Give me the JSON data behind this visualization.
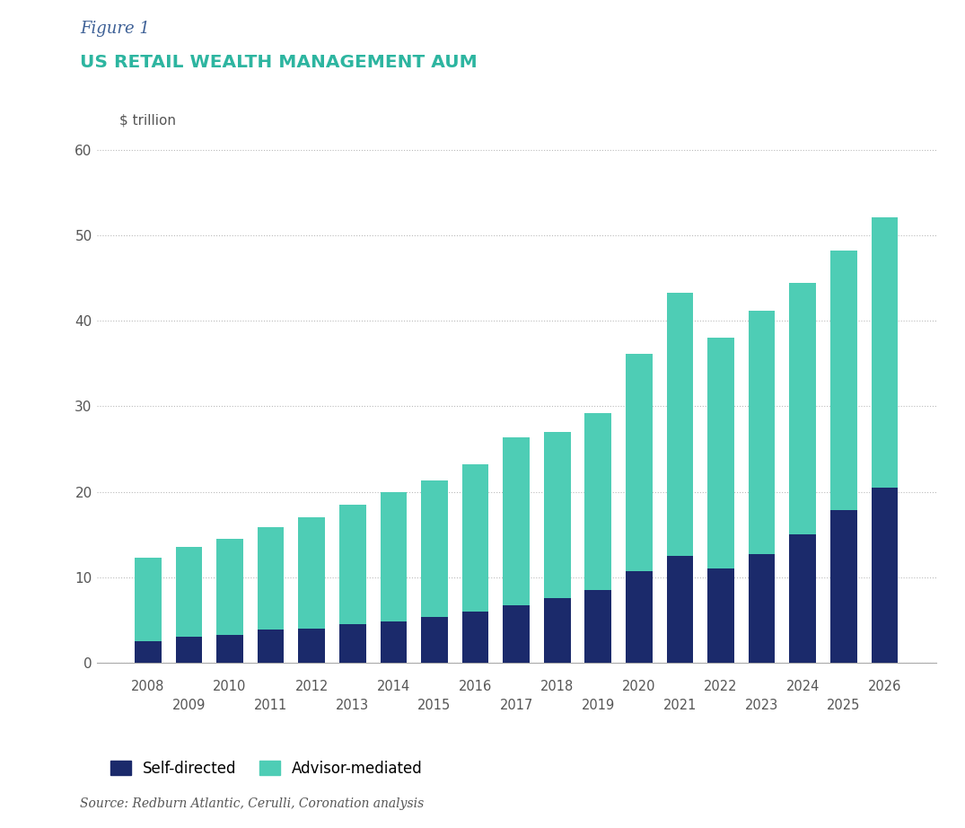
{
  "years": [
    2008,
    2009,
    2010,
    2011,
    2012,
    2013,
    2014,
    2015,
    2016,
    2017,
    2018,
    2019,
    2020,
    2021,
    2022,
    2023,
    2024,
    2025,
    2026
  ],
  "self_directed": [
    2.5,
    3.0,
    3.2,
    3.8,
    4.0,
    4.5,
    4.8,
    5.3,
    6.0,
    6.7,
    7.5,
    8.5,
    10.7,
    12.5,
    11.0,
    12.7,
    15.0,
    17.8,
    20.5
  ],
  "advisor_mediated": [
    9.8,
    10.5,
    11.3,
    12.0,
    13.0,
    14.0,
    15.2,
    16.0,
    17.2,
    19.7,
    19.5,
    20.7,
    25.5,
    30.8,
    27.0,
    28.5,
    29.5,
    30.5,
    31.7
  ],
  "self_directed_color": "#1b2a6b",
  "advisor_mediated_color": "#4ecdb5",
  "background_color": "#ffffff",
  "figure1_text": "Figure 1",
  "title_text": "US RETAIL WEALTH MANAGEMENT AUM",
  "ylabel": "$ trillion",
  "ylim_max": 65,
  "yticks": [
    0,
    10,
    20,
    30,
    40,
    50,
    60
  ],
  "legend_self": "Self-directed",
  "legend_advisor": "Advisor-mediated",
  "source_text": "Source: Redburn Atlantic, Cerulli, Coronation analysis",
  "figure1_color": "#3d6096",
  "title_color": "#2db5a0",
  "tick_color": "#555555",
  "grid_color": "#bbbbbb",
  "bar_width": 0.65
}
